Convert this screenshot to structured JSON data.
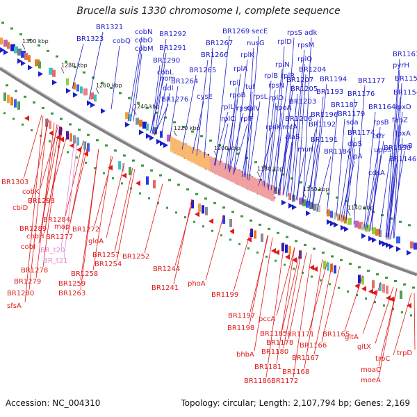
{
  "title": "Brucella suis 1330 chromosome I, complete sequence",
  "footer": {
    "accession": "Accession: NC_004310",
    "summary": "Topology: circular; Length: 2,107,794 bp; Genes: 2,169"
  },
  "colors": {
    "forward": "#1c1ccc",
    "reverse": "#e01a1a",
    "pseudo": "#e08ad0",
    "backbone": "#808080"
  },
  "ticks": [
    "1300 kbp",
    "1280 kbp",
    "1260 kbp",
    "1240 kbp",
    "1220 kbp",
    "1200 kbp",
    "1180 kbp",
    "1160 kbp",
    "1140 kbp"
  ],
  "forward_genes": [
    "BR1321",
    "BR1323",
    "cobQ",
    "cobN",
    "cobO",
    "cobM",
    "BR1292",
    "BR1291",
    "BR1290",
    "cobL",
    "hom",
    "ddl",
    "BR1276",
    "cysE",
    "BR1264",
    "BR1265",
    "BR1266",
    "BR1267",
    "BR1269",
    "secE",
    "nusG",
    "rplK",
    "rplA",
    "rplJ",
    "rplL",
    "rpoB",
    "tuf",
    "rpsG",
    "rplV",
    "rplC",
    "rplF",
    "rpsL",
    "rplB",
    "rplN",
    "rpsN",
    "rplD",
    "rplR",
    "rpoA",
    "rplO",
    "rpsK",
    "rpsS",
    "adk",
    "rpsM",
    "rplQ",
    "BR1204",
    "BR1207",
    "BR1205",
    "BR1203",
    "BR1206",
    "recA",
    "alaS",
    "BR1194",
    "BR1193",
    "BR1196",
    "BR1192",
    "BR1191",
    "murI",
    "BR1184",
    "BR1187",
    "BR1179",
    "sda",
    "BR1174",
    "clpS",
    "clpA",
    "BR1177",
    "BR1176",
    "BR1163",
    "pyrH",
    "BR1156",
    "BR1154",
    "BR1164",
    "rpsB",
    "tsf",
    "uppS",
    "cdsA",
    "lpxD",
    "fabZ",
    "lpxA",
    "lpxB",
    "BR1150",
    "BR1146",
    "frr"
  ],
  "reverse_genes": [
    "BR1303",
    "cobK",
    "BR1293",
    "cbiD",
    "BR1284",
    "BR1289",
    "map",
    "BR1272",
    "cobH",
    "BR1277",
    "cobI",
    "BR1278",
    "BR1279",
    "BR1280",
    "sfsA",
    "gloA",
    "BR1257",
    "BR1254",
    "BR1252",
    "BR1258",
    "BR1259",
    "BR1263",
    "BR1244",
    "BR1241",
    "phoA",
    "BR1199",
    "BR1197",
    "BR1198",
    "pccA",
    "bhbA",
    "BR1185",
    "BR1178",
    "BR1180",
    "BR1181",
    "BR1186",
    "BR1172",
    "BR1171",
    "BR1166",
    "BR1167",
    "BR1168",
    "BR1165",
    "gltA",
    "gltX",
    "trpC",
    "moaC",
    "trpD",
    "moeA"
  ],
  "pseudo_genes": [
    "BR_t20",
    "BR_t21"
  ]
}
